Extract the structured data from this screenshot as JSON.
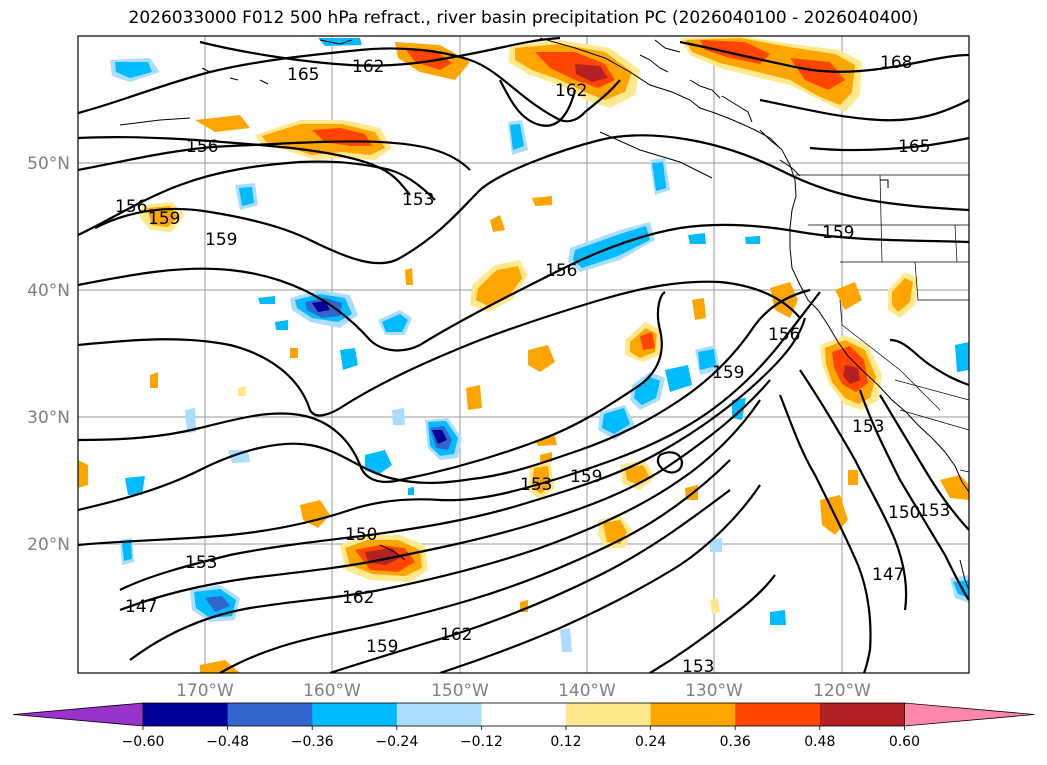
{
  "title": "2026033000 F012 500 hPa refract., river basin precipitation PC (2026040100 - 2026040400)",
  "axes": {
    "lat_labels": [
      "50°N",
      "40°N",
      "30°N",
      "20°N"
    ],
    "lon_labels": [
      "170°W",
      "160°W",
      "150°W",
      "140°W",
      "130°W",
      "120°W"
    ]
  },
  "contour_labels": [
    "165",
    "162",
    "162",
    "168",
    "156",
    "165",
    "153",
    "156",
    "159",
    "159",
    "156",
    "159",
    "159",
    "156",
    "153",
    "153",
    "159",
    "150",
    "150",
    "153",
    "147",
    "162",
    "147",
    "162",
    "159",
    "153",
    "153"
  ],
  "colorbar": {
    "tick_labels": [
      "−0.60",
      "−0.48",
      "−0.36",
      "−0.24",
      "−0.12",
      "0.12",
      "0.24",
      "0.36",
      "0.48",
      "0.60"
    ],
    "colors": [
      "#9933cc",
      "#000099",
      "#3366cc",
      "#00bbff",
      "#aaddff",
      "#ffffff",
      "#ffe98c",
      "#ffa500",
      "#ff4500",
      "#b22222",
      "#ff88aa"
    ]
  }
}
